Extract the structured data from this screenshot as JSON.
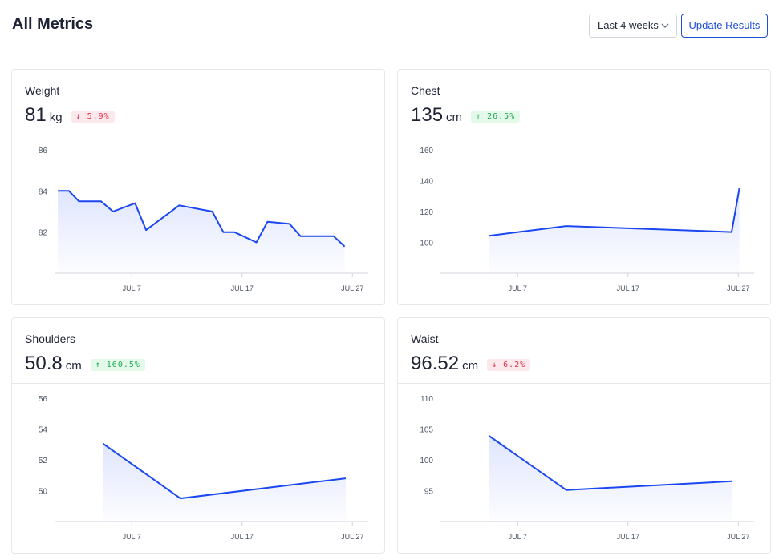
{
  "header": {
    "title": "All Metrics",
    "range_label": "Last 4 weeks",
    "update_label": "Update Results"
  },
  "cards": [
    {
      "name": "Weight",
      "value": "81",
      "unit": "kg",
      "change": "5.9%",
      "direction": "down"
    },
    {
      "name": "Chest",
      "value": "135",
      "unit": "cm",
      "change": "26.5%",
      "direction": "up"
    },
    {
      "name": "Shoulders",
      "value": "50.8",
      "unit": "cm",
      "change": "160.5%",
      "direction": "up"
    },
    {
      "name": "Waist",
      "value": "96.52",
      "unit": "cm",
      "change": "6.2%",
      "direction": "down"
    }
  ],
  "chart_data": [
    {
      "type": "area",
      "title": "Weight",
      "x_ticks": [
        "JUL 7",
        "JUL 17",
        "JUL 27"
      ],
      "x_tick_days": [
        7,
        17,
        27
      ],
      "xlim": [
        0,
        28
      ],
      "y_ticks": [
        82,
        84,
        86
      ],
      "ylim": [
        80,
        86
      ],
      "x": [
        0.3,
        1.3,
        2.2,
        4.2,
        5.3,
        7.3,
        8.3,
        11.3,
        14.3,
        15.3,
        16.3,
        18.3,
        19.3,
        21.3,
        22.3,
        25.3,
        26.3
      ],
      "y": [
        84.0,
        84.0,
        83.5,
        83.5,
        83.0,
        83.4,
        82.1,
        83.3,
        83.0,
        82.0,
        82.0,
        81.5,
        82.5,
        82.4,
        81.8,
        81.8,
        81.3
      ],
      "color": "#1a47f0"
    },
    {
      "type": "area",
      "title": "Chest",
      "x_ticks": [
        "JUL 7",
        "JUL 17",
        "JUL 27"
      ],
      "x_tick_days": [
        7,
        17,
        27
      ],
      "xlim": [
        0,
        28
      ],
      "y_ticks": [
        100,
        120,
        140,
        160
      ],
      "ylim": [
        80,
        160
      ],
      "x": [
        4.4,
        11.4,
        26.4,
        27.1
      ],
      "y": [
        104.3,
        110.6,
        106.7,
        135
      ],
      "color": "#1a47f0"
    },
    {
      "type": "area",
      "title": "Shoulders",
      "x_ticks": [
        "JUL 7",
        "JUL 17",
        "JUL 27"
      ],
      "x_tick_days": [
        7,
        17,
        27
      ],
      "xlim": [
        0,
        28
      ],
      "y_ticks": [
        50,
        52,
        54,
        56
      ],
      "ylim": [
        48,
        56
      ],
      "x": [
        4.4,
        11.4,
        26.4
      ],
      "y": [
        53.05,
        49.5,
        50.8
      ],
      "color": "#1a47f0"
    },
    {
      "type": "area",
      "title": "Waist",
      "x_ticks": [
        "JUL 7",
        "JUL 17",
        "JUL 27"
      ],
      "x_tick_days": [
        7,
        17,
        27
      ],
      "xlim": [
        0,
        28
      ],
      "y_ticks": [
        95,
        100,
        105,
        110
      ],
      "ylim": [
        90,
        110
      ],
      "x": [
        4.4,
        11.4,
        26.4
      ],
      "y": [
        103.9,
        95.1,
        96.52
      ],
      "color": "#1a47f0"
    }
  ]
}
